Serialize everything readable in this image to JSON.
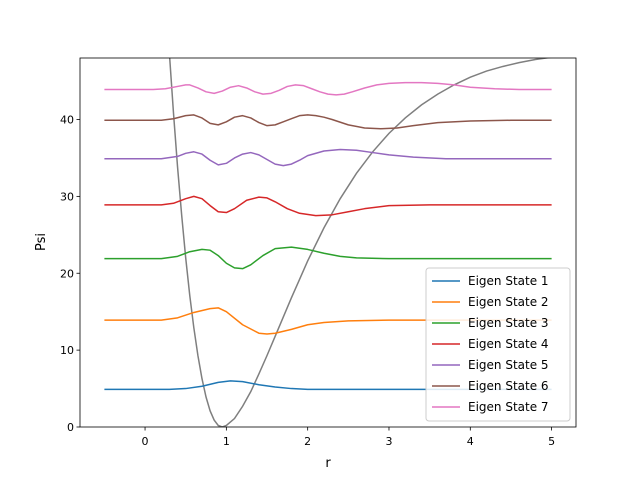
{
  "chart_data": {
    "type": "line",
    "title": "",
    "xlabel": "r",
    "ylabel": "Psi",
    "xlim": [
      -0.8,
      5.3
    ],
    "ylim": [
      0,
      48
    ],
    "xticks": [
      0,
      1,
      2,
      3,
      4,
      5
    ],
    "yticks": [
      0,
      10,
      20,
      30,
      40
    ],
    "legend_position": "lower-right",
    "grid": false,
    "potential": {
      "color": "#7f7f7f",
      "x": [
        0.3,
        0.35,
        0.4,
        0.45,
        0.5,
        0.55,
        0.6,
        0.65,
        0.7,
        0.75,
        0.8,
        0.85,
        0.9,
        0.95,
        1.0,
        1.1,
        1.2,
        1.3,
        1.4,
        1.5,
        1.6,
        1.7,
        1.8,
        1.9,
        2.0,
        2.2,
        2.4,
        2.6,
        2.8,
        3.0,
        3.2,
        3.4,
        3.6,
        3.8,
        4.0,
        4.2,
        4.4,
        4.6,
        4.8,
        5.0
      ],
      "y": [
        48.5,
        40.8,
        33.8,
        27.6,
        22.0,
        17.1,
        12.9,
        9.3,
        6.3,
        3.9,
        2.1,
        0.9,
        0.2,
        0.0,
        0.2,
        1.1,
        2.7,
        4.6,
        6.9,
        9.3,
        11.8,
        14.3,
        16.8,
        19.2,
        21.6,
        25.9,
        29.7,
        33.0,
        35.8,
        38.2,
        40.2,
        41.9,
        43.3,
        44.5,
        45.5,
        46.3,
        46.9,
        47.4,
        47.8,
        48.1
      ]
    },
    "series": [
      {
        "name": "Eigen State 1",
        "color": "#1f77b4",
        "offset": 4.9,
        "x": [
          -0.5,
          0.3,
          0.5,
          0.7,
          0.9,
          1.05,
          1.2,
          1.4,
          1.6,
          1.8,
          2.0,
          2.5,
          3.0,
          3.5,
          4.0,
          4.5,
          5.0
        ],
        "y": [
          4.9,
          4.9,
          5.0,
          5.3,
          5.8,
          6.0,
          5.9,
          5.5,
          5.2,
          5.0,
          4.9,
          4.9,
          4.9,
          4.9,
          4.9,
          4.9,
          4.9
        ]
      },
      {
        "name": "Eigen State 2",
        "color": "#ff7f0e",
        "offset": 13.9,
        "x": [
          -0.5,
          0.2,
          0.4,
          0.6,
          0.8,
          0.9,
          1.0,
          1.2,
          1.4,
          1.5,
          1.6,
          1.8,
          2.0,
          2.2,
          2.5,
          3.0,
          3.5,
          4.0,
          4.5,
          5.0
        ],
        "y": [
          13.9,
          13.9,
          14.2,
          14.9,
          15.4,
          15.5,
          15.0,
          13.3,
          12.2,
          12.1,
          12.2,
          12.7,
          13.3,
          13.6,
          13.8,
          13.9,
          13.9,
          13.9,
          13.9,
          13.9
        ]
      },
      {
        "name": "Eigen State 3",
        "color": "#2ca02c",
        "offset": 21.9,
        "x": [
          -0.5,
          0.2,
          0.4,
          0.55,
          0.7,
          0.8,
          0.9,
          1.0,
          1.1,
          1.2,
          1.3,
          1.45,
          1.6,
          1.8,
          2.0,
          2.2,
          2.4,
          2.6,
          3.0,
          3.5,
          4.0,
          5.0
        ],
        "y": [
          21.9,
          21.9,
          22.2,
          22.8,
          23.1,
          23.0,
          22.3,
          21.3,
          20.7,
          20.6,
          21.1,
          22.3,
          23.2,
          23.4,
          23.1,
          22.6,
          22.2,
          22.0,
          21.9,
          21.9,
          21.9,
          21.9
        ]
      },
      {
        "name": "Eigen State 4",
        "color": "#d62728",
        "offset": 28.9,
        "x": [
          -0.5,
          0.2,
          0.35,
          0.5,
          0.6,
          0.7,
          0.8,
          0.9,
          1.0,
          1.1,
          1.25,
          1.4,
          1.5,
          1.6,
          1.75,
          1.9,
          2.1,
          2.3,
          2.5,
          2.7,
          3.0,
          3.5,
          4.0,
          5.0
        ],
        "y": [
          28.9,
          28.9,
          29.1,
          29.7,
          30.0,
          29.7,
          28.8,
          28.0,
          27.9,
          28.4,
          29.5,
          29.9,
          29.8,
          29.3,
          28.4,
          27.8,
          27.5,
          27.6,
          28.0,
          28.4,
          28.8,
          28.9,
          28.9,
          28.9
        ]
      },
      {
        "name": "Eigen State 5",
        "color": "#9467bd",
        "offset": 34.9,
        "x": [
          -0.5,
          0.2,
          0.4,
          0.5,
          0.6,
          0.7,
          0.8,
          0.9,
          1.0,
          1.1,
          1.2,
          1.3,
          1.4,
          1.5,
          1.6,
          1.7,
          1.8,
          1.9,
          2.0,
          2.2,
          2.4,
          2.6,
          2.8,
          3.0,
          3.3,
          3.7,
          4.0,
          5.0
        ],
        "y": [
          34.9,
          34.9,
          35.2,
          35.6,
          35.8,
          35.5,
          34.7,
          34.1,
          34.3,
          35.0,
          35.5,
          35.7,
          35.4,
          34.8,
          34.2,
          34.0,
          34.2,
          34.7,
          35.3,
          35.9,
          36.1,
          36.0,
          35.7,
          35.4,
          35.1,
          34.9,
          34.9,
          34.9
        ]
      },
      {
        "name": "Eigen State 6",
        "color": "#8c564b",
        "offset": 39.9,
        "x": [
          -0.5,
          0.2,
          0.35,
          0.5,
          0.6,
          0.7,
          0.8,
          0.9,
          1.0,
          1.1,
          1.2,
          1.3,
          1.4,
          1.5,
          1.6,
          1.7,
          1.8,
          1.9,
          2.0,
          2.1,
          2.2,
          2.3,
          2.5,
          2.7,
          2.9,
          3.1,
          3.3,
          3.6,
          4.0,
          4.5,
          5.0
        ],
        "y": [
          39.9,
          39.9,
          40.1,
          40.5,
          40.6,
          40.2,
          39.5,
          39.3,
          39.7,
          40.3,
          40.5,
          40.2,
          39.6,
          39.2,
          39.3,
          39.7,
          40.1,
          40.5,
          40.6,
          40.5,
          40.3,
          40.0,
          39.3,
          38.9,
          38.8,
          38.9,
          39.2,
          39.6,
          39.8,
          39.9,
          39.9
        ]
      },
      {
        "name": "Eigen State 7",
        "color": "#e377c2",
        "offset": 43.9,
        "x": [
          -0.5,
          0.1,
          0.25,
          0.4,
          0.5,
          0.55,
          0.65,
          0.75,
          0.85,
          0.95,
          1.05,
          1.15,
          1.25,
          1.35,
          1.45,
          1.55,
          1.65,
          1.75,
          1.85,
          1.95,
          2.05,
          2.15,
          2.25,
          2.35,
          2.45,
          2.55,
          2.7,
          2.85,
          3.0,
          3.2,
          3.4,
          3.6,
          3.8,
          4.0,
          4.3,
          4.6,
          5.0
        ],
        "y": [
          43.9,
          43.9,
          44.0,
          44.3,
          44.5,
          44.5,
          44.1,
          43.6,
          43.4,
          43.7,
          44.2,
          44.4,
          44.1,
          43.6,
          43.3,
          43.4,
          43.8,
          44.3,
          44.5,
          44.4,
          44.0,
          43.6,
          43.3,
          43.2,
          43.3,
          43.6,
          44.1,
          44.5,
          44.7,
          44.8,
          44.8,
          44.7,
          44.5,
          44.2,
          44.0,
          43.9,
          43.9
        ]
      }
    ]
  }
}
